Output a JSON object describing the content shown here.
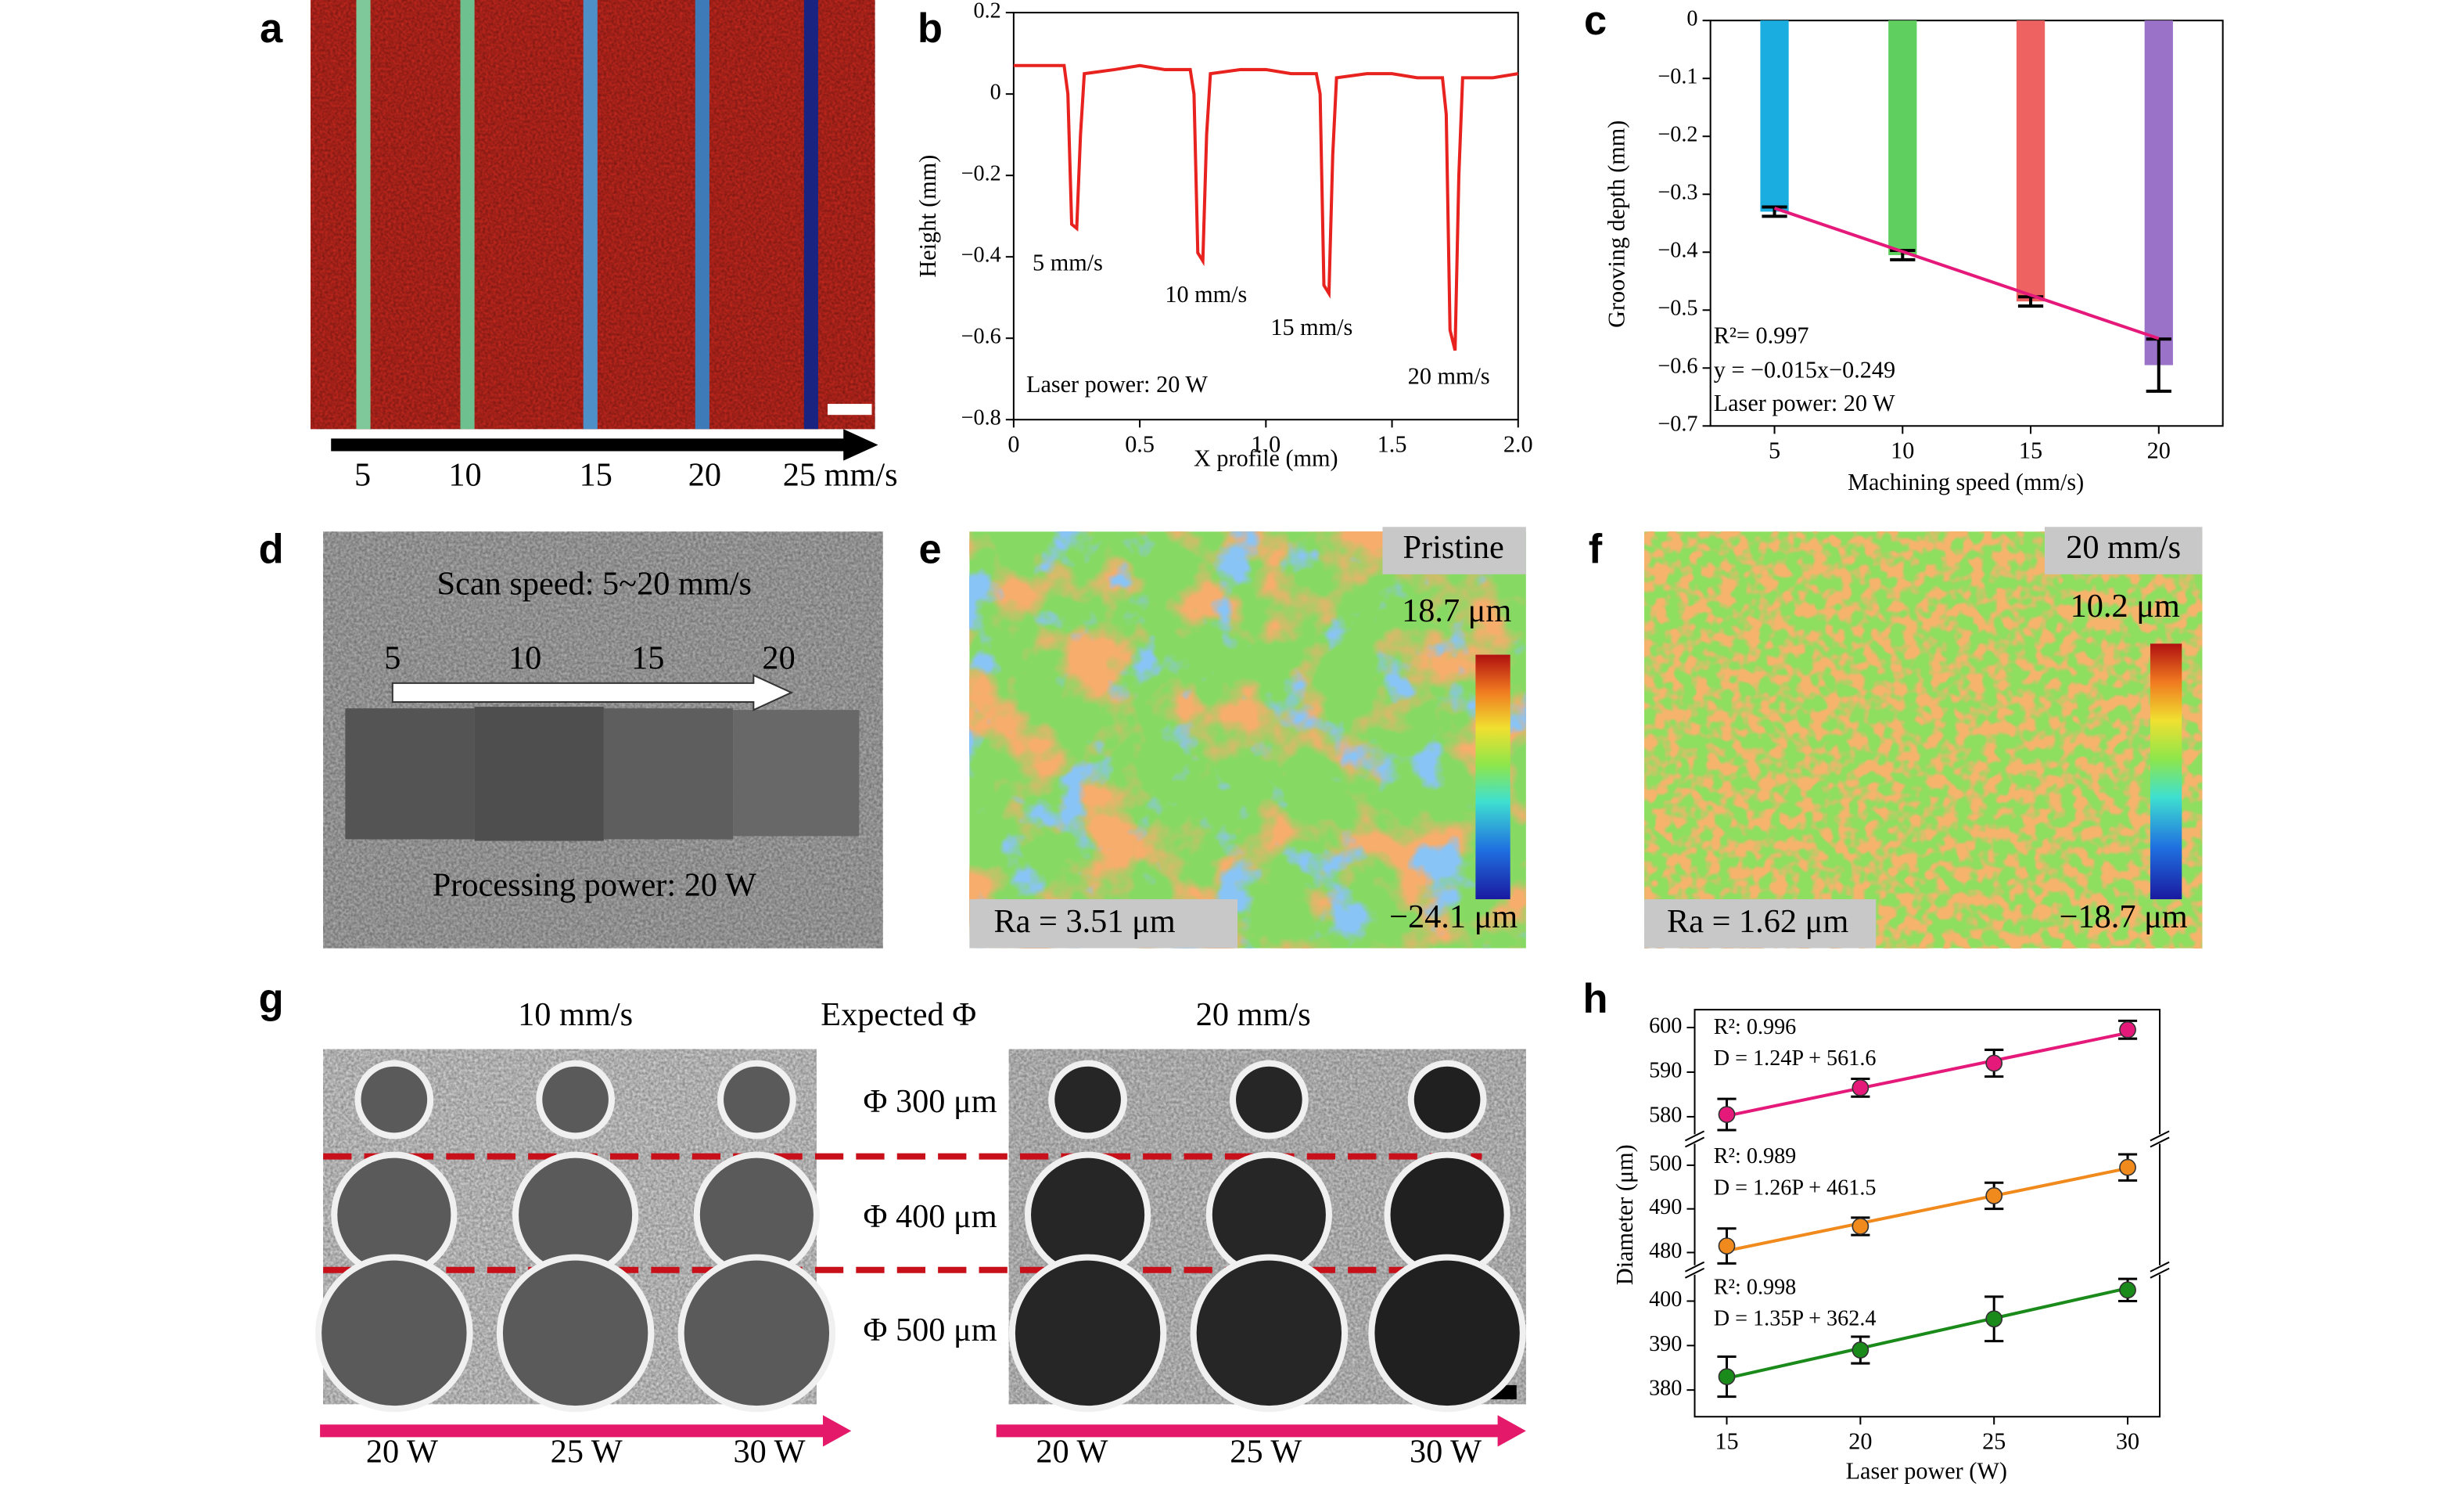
{
  "panel_labels": [
    "a",
    "b",
    "c",
    "d",
    "e",
    "f",
    "g",
    "h"
  ],
  "panel_a": {
    "speeds": [
      "5",
      "10",
      "15",
      "20",
      "25 mm/s"
    ]
  },
  "panel_d": {
    "title": "Scan speed: 5~20 mm/s",
    "speeds": [
      "5",
      "10",
      "15",
      "20"
    ],
    "footer": "Processing power: 20 W"
  },
  "panel_e": {
    "tag": "Pristine",
    "max": "18.7 μm",
    "min": "−24.1 μm",
    "ra": "Ra = 3.51 μm"
  },
  "panel_f": {
    "tag": "20 mm/s",
    "max": "10.2 μm",
    "min": "−18.7 μm",
    "ra": "Ra = 1.62 μm"
  },
  "panel_g": {
    "headers": [
      "10 mm/s",
      "Expected Φ",
      "20 mm/s"
    ],
    "diameters": [
      "Φ 300 μm",
      "Φ 400 μm",
      "Φ 500 μm"
    ],
    "powers_left": [
      "20 W",
      "25 W",
      "30 W"
    ],
    "powers_right": [
      "20 W",
      "25 W",
      "30 W"
    ]
  },
  "chart_data": [
    {
      "type": "line",
      "ylabel": "Height (mm)",
      "xlabel": "X profile (mm)",
      "x": [
        0,
        0.1,
        0.2,
        0.215,
        0.23,
        0.25,
        0.265,
        0.28,
        0.4,
        0.5,
        0.6,
        0.7,
        0.715,
        0.73,
        0.75,
        0.765,
        0.78,
        0.9,
        1.0,
        1.1,
        1.2,
        1.215,
        1.23,
        1.25,
        1.265,
        1.28,
        1.4,
        1.5,
        1.6,
        1.7,
        1.715,
        1.73,
        1.75,
        1.765,
        1.78,
        1.9,
        2.0
      ],
      "series": [
        {
          "color": "#e8221e",
          "values": [
            0.07,
            0.07,
            0.07,
            0.0,
            -0.32,
            -0.33,
            -0.1,
            0.05,
            0.06,
            0.07,
            0.06,
            0.06,
            0.0,
            -0.39,
            -0.41,
            -0.1,
            0.05,
            0.06,
            0.06,
            0.05,
            0.05,
            0.0,
            -0.47,
            -0.49,
            -0.15,
            0.04,
            0.05,
            0.05,
            0.04,
            0.04,
            -0.05,
            -0.58,
            -0.63,
            -0.2,
            0.04,
            0.04,
            0.05
          ]
        }
      ],
      "xlim": [
        0,
        2.0
      ],
      "ylim": [
        -0.8,
        0.2
      ],
      "xticks": [
        0,
        0.5,
        {
          "value": 1.0,
          "label": "1.0"
        },
        1.5,
        {
          "value": 2.0,
          "label": "2.0"
        }
      ],
      "yticks": [
        0.2,
        0,
        {
          "value": -0.2,
          "label": "−0.2"
        },
        {
          "value": -0.4,
          "label": "−0.4"
        },
        {
          "value": -0.6,
          "label": "−0.6"
        },
        {
          "value": -0.8,
          "label": "−0.8"
        }
      ],
      "annotations": [
        "5 mm/s",
        "10 mm/s",
        "15 mm/s",
        "20 mm/s",
        "Laser power: 20 W"
      ]
    },
    {
      "type": "bar",
      "ylabel": "Grooving depth (mm)",
      "xlabel": "Machining speed (mm/s)",
      "categories": [
        "5",
        "10",
        "15",
        "20"
      ],
      "values": [
        -0.33,
        -0.405,
        -0.485,
        -0.595
      ],
      "errors": [
        0.008,
        0.008,
        0.008,
        0.045
      ],
      "colors": [
        "#1aaee0",
        "#5fcf5f",
        "#ef6262",
        "#9a73c8"
      ],
      "fit_values": [
        -0.324,
        -0.399,
        -0.474,
        -0.549
      ],
      "fit_color": "#e5197a",
      "ylim": [
        -0.7,
        0
      ],
      "yticks": [
        0,
        {
          "value": -0.1,
          "label": "−0.1"
        },
        {
          "value": -0.2,
          "label": "−0.2"
        },
        {
          "value": -0.3,
          "label": "−0.3"
        },
        {
          "value": -0.4,
          "label": "−0.4"
        },
        {
          "value": -0.5,
          "label": "−0.5"
        },
        {
          "value": -0.6,
          "label": "−0.6"
        },
        {
          "value": -0.7,
          "label": "−0.7"
        }
      ],
      "annotations": [
        "R²= 0.997",
        "y = −0.015x−0.249",
        "Laser power: 20 W"
      ]
    },
    {
      "type": "scatter",
      "ylabel": "Diameter (μm)",
      "xlabel": "Laser power (W)",
      "x": [
        15,
        20,
        25,
        30
      ],
      "xlim": [
        13.8,
        31.2
      ],
      "xticks": [
        15,
        20,
        25,
        30
      ],
      "series": [
        {
          "color": "#e5197a",
          "values": [
            580.5,
            586.5,
            592,
            599.5
          ],
          "errors": [
            3.5,
            2,
            3,
            2
          ],
          "fit": [
            580.2,
            586.4,
            592.6,
            598.8
          ],
          "ylim": [
            575,
            604
          ],
          "yticks": [
            580,
            590,
            600
          ],
          "annotations": [
            "R²: 0.996",
            "D = 1.24P + 561.6"
          ]
        },
        {
          "color": "#f08a1c",
          "values": [
            481.5,
            486,
            493,
            499.5
          ],
          "errors": [
            4,
            2,
            3,
            3
          ],
          "fit": [
            480.4,
            486.7,
            493,
            499.3
          ],
          "ylim": [
            476,
            506
          ],
          "yticks": [
            480,
            490,
            500
          ],
          "annotations": [
            "R²: 0.989",
            "D = 1.26P + 461.5"
          ]
        },
        {
          "color": "#1a8a1a",
          "values": [
            383,
            389,
            396,
            402.5
          ],
          "errors": [
            4.5,
            3,
            5,
            2.5
          ],
          "fit": [
            382.65,
            389.4,
            396.15,
            402.9
          ],
          "ylim": [
            374,
            407
          ],
          "yticks": [
            380,
            390,
            400
          ],
          "annotations": [
            "R²: 0.998",
            "D = 1.35P + 362.4"
          ]
        }
      ]
    }
  ]
}
